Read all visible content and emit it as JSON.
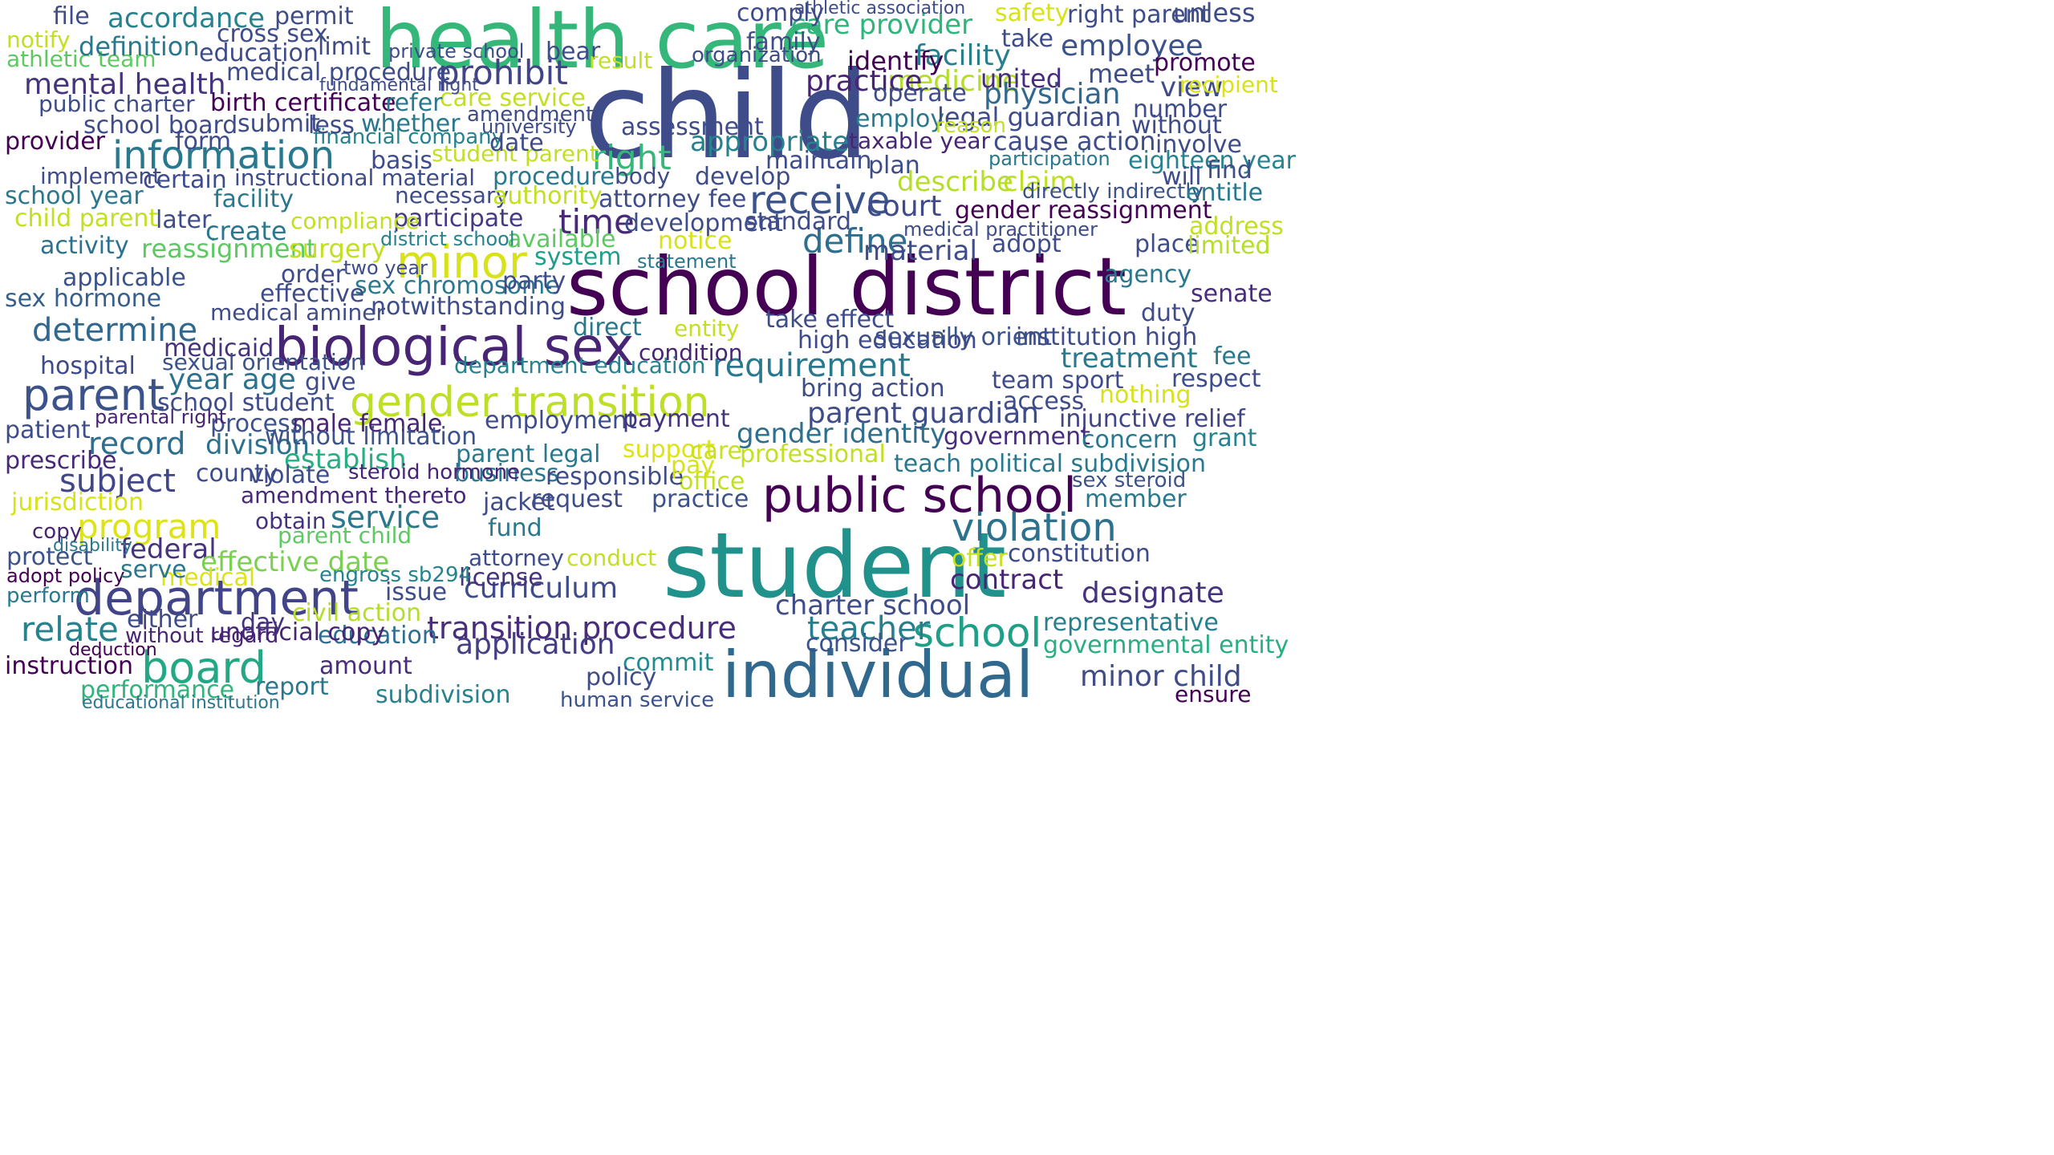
{
  "words": [
    {
      "text": "health care",
      "color": "#35b779"
    },
    {
      "text": "child",
      "color": "#3e4c8a"
    },
    {
      "text": "school district",
      "color": "#440154"
    },
    {
      "text": "biological sex",
      "color": "#482475"
    },
    {
      "text": "student",
      "color": "#21918c"
    },
    {
      "text": "public school",
      "color": "#440154"
    },
    {
      "text": "individual",
      "color": "#31688e"
    },
    {
      "text": "gender transition",
      "color": "#bddf26"
    },
    {
      "text": "department",
      "color": "#414487"
    },
    {
      "text": "minor",
      "color": "#d8e219"
    },
    {
      "text": "parent",
      "color": "#3b528b"
    },
    {
      "text": "board",
      "color": "#22a884"
    },
    {
      "text": "information",
      "color": "#2a788e"
    },
    {
      "text": "violation",
      "color": "#2c728e"
    },
    {
      "text": "school",
      "color": "#1f9e89"
    },
    {
      "text": "receive",
      "color": "#3b528b"
    },
    {
      "text": "determine",
      "color": "#31688e"
    },
    {
      "text": "mental health",
      "color": "#46337e"
    },
    {
      "text": "requirement",
      "color": "#2a788e"
    },
    {
      "text": "transition procedure",
      "color": "#472d7b"
    },
    {
      "text": "charter school",
      "color": "#3e4c8a"
    },
    {
      "text": "program",
      "color": "#dde318"
    },
    {
      "text": "relate",
      "color": "#26828e"
    },
    {
      "text": "time",
      "color": "#482878"
    },
    {
      "text": "prohibit",
      "color": "#414487"
    },
    {
      "text": "define",
      "color": "#2e6e8e"
    },
    {
      "text": "right",
      "color": "#35b779"
    },
    {
      "text": "employee",
      "color": "#3b528b"
    },
    {
      "text": "facility",
      "color": "#277f8e"
    },
    {
      "text": "identify",
      "color": "#440154"
    },
    {
      "text": "medicine",
      "color": "#b5de2b"
    },
    {
      "text": "practice",
      "color": "#482475"
    },
    {
      "text": "physician",
      "color": "#31688e"
    },
    {
      "text": "birth certificate",
      "color": "#440154"
    },
    {
      "text": "care provider",
      "color": "#2fb47c"
    },
    {
      "text": "teacher",
      "color": "#277f8e"
    },
    {
      "text": "court",
      "color": "#3e4a89"
    },
    {
      "text": "contract",
      "color": "#482475"
    },
    {
      "text": "application",
      "color": "#433e85"
    },
    {
      "text": "curriculum",
      "color": "#3e4c8a"
    },
    {
      "text": "record",
      "color": "#2e6e8e"
    },
    {
      "text": "federal",
      "color": "#46337e"
    },
    {
      "text": "service",
      "color": "#2a788e"
    },
    {
      "text": "subject",
      "color": "#404688"
    },
    {
      "text": "effective date",
      "color": "#7ad151"
    },
    {
      "text": "instruction",
      "color": "#440154"
    },
    {
      "text": "performance",
      "color": "#2fb47c"
    },
    {
      "text": "business",
      "color": "#2a788e"
    },
    {
      "text": "gender reassignment",
      "color": "#440154"
    },
    {
      "text": "sex chromosome",
      "color": "#2a788e"
    },
    {
      "text": "notwithstanding",
      "color": "#3e4c8a"
    },
    {
      "text": "participate",
      "color": "#443983"
    },
    {
      "text": "available",
      "color": "#5ec962"
    },
    {
      "text": "system",
      "color": "#1f9e89"
    },
    {
      "text": "hospital",
      "color": "#3e4a89"
    },
    {
      "text": "medicaid",
      "color": "#46337e"
    },
    {
      "text": "sex hormone",
      "color": "#355f8d"
    },
    {
      "text": "activity",
      "color": "#2c728e"
    },
    {
      "text": "applicable",
      "color": "#3b528b"
    },
    {
      "text": "jurisdiction",
      "color": "#d8e219"
    },
    {
      "text": "county",
      "color": "#3e4c8a"
    },
    {
      "text": "division",
      "color": "#2c728e"
    },
    {
      "text": "prescribe",
      "color": "#482878"
    },
    {
      "text": "establish",
      "color": "#28ae80"
    },
    {
      "text": "school board",
      "color": "#3e4c8a"
    },
    {
      "text": "professional",
      "color": "#c2df23"
    },
    {
      "text": "sexually orient",
      "color": "#3b528b"
    },
    {
      "text": "team sport",
      "color": "#3e4c8a"
    },
    {
      "text": "treatment",
      "color": "#2a788e"
    },
    {
      "text": "injunctive relief",
      "color": "#414487"
    },
    {
      "text": "government",
      "color": "#472d7b"
    },
    {
      "text": "teach political subdivision",
      "color": "#2a788e"
    },
    {
      "text": "sex steroid",
      "color": "#3b528b"
    },
    {
      "text": "member",
      "color": "#2a788e"
    },
    {
      "text": "governmental entity",
      "color": "#28ae80"
    },
    {
      "text": "minor child",
      "color": "#3e4c8a"
    },
    {
      "text": "ensure",
      "color": "#440154"
    },
    {
      "text": "designate",
      "color": "#46337e"
    },
    {
      "text": "representative",
      "color": "#277f8e"
    },
    {
      "text": "constitution",
      "color": "#3e4a89"
    },
    {
      "text": "offer",
      "color": "#c8e020"
    },
    {
      "text": "consider",
      "color": "#3b528b"
    },
    {
      "text": "commit",
      "color": "#238a8d"
    },
    {
      "text": "policy",
      "color": "#3e4c8a"
    },
    {
      "text": "subdivision",
      "color": "#26828e"
    },
    {
      "text": "human service",
      "color": "#3b528b"
    },
    {
      "text": "report",
      "color": "#2a788e"
    },
    {
      "text": "amount",
      "color": "#472d7b"
    },
    {
      "text": "education",
      "color": "#2e6e8e"
    },
    {
      "text": "unofficial copy",
      "color": "#482475"
    },
    {
      "text": "civil action",
      "color": "#b5de2b"
    },
    {
      "text": "license",
      "color": "#46337e"
    },
    {
      "text": "issue",
      "color": "#3e4c8a"
    },
    {
      "text": "attorney",
      "color": "#3e4c8a"
    },
    {
      "text": "conduct",
      "color": "#c2df23"
    },
    {
      "text": "fund",
      "color": "#2a788e"
    },
    {
      "text": "request",
      "color": "#3e4c8a"
    },
    {
      "text": "practice",
      "color": "#3b528b"
    },
    {
      "text": "office",
      "color": "#c2df23"
    },
    {
      "text": "amendment thereto",
      "color": "#482878"
    },
    {
      "text": "violate",
      "color": "#3e4c8a"
    },
    {
      "text": "obtain",
      "color": "#46337e"
    },
    {
      "text": "parent child",
      "color": "#5ec962"
    },
    {
      "text": "engross sb294",
      "color": "#26828e"
    },
    {
      "text": "medical",
      "color": "#dde318"
    },
    {
      "text": "protect",
      "color": "#3b528b"
    },
    {
      "text": "adopt policy",
      "color": "#440154"
    },
    {
      "text": "serve",
      "color": "#2a788e"
    },
    {
      "text": "copy",
      "color": "#482475"
    },
    {
      "text": "disability",
      "color": "#2a788e"
    },
    {
      "text": "perform",
      "color": "#2a788e"
    },
    {
      "text": "either",
      "color": "#3e4c8a"
    },
    {
      "text": "without regard",
      "color": "#482475"
    },
    {
      "text": "deduction",
      "color": "#440154"
    },
    {
      "text": "educational institution",
      "color": "#2a788e"
    },
    {
      "text": "day",
      "color": "#46337e"
    },
    {
      "text": "year age",
      "color": "#2c728e"
    },
    {
      "text": "school student",
      "color": "#3e4c8a"
    },
    {
      "text": "process",
      "color": "#3b528b"
    },
    {
      "text": "male female",
      "color": "#482475"
    },
    {
      "text": "employment",
      "color": "#3e4c8a"
    },
    {
      "text": "payment",
      "color": "#46337e"
    },
    {
      "text": "parent guardian",
      "color": "#3e4c8a"
    },
    {
      "text": "gender identity",
      "color": "#2e6e8e"
    },
    {
      "text": "bring action",
      "color": "#3e4c8a"
    },
    {
      "text": "high education",
      "color": "#3e4c8a"
    },
    {
      "text": "take effect",
      "color": "#3e4c8a"
    },
    {
      "text": "institution high",
      "color": "#3e4c8a"
    },
    {
      "text": "condition",
      "color": "#482475"
    },
    {
      "text": "direct",
      "color": "#2a788e"
    },
    {
      "text": "entity",
      "color": "#c2df23"
    },
    {
      "text": "department education",
      "color": "#26828e"
    },
    {
      "text": "give",
      "color": "#3e4c8a"
    },
    {
      "text": "sexual orientation",
      "color": "#3b528b"
    },
    {
      "text": "parental right",
      "color": "#482475"
    },
    {
      "text": "patient",
      "color": "#3e4c8a"
    },
    {
      "text": "without limitation",
      "color": "#3b528b"
    },
    {
      "text": "steroid hormone",
      "color": "#482475"
    },
    {
      "text": "parent legal",
      "color": "#2a788e"
    },
    {
      "text": "responsible",
      "color": "#3e4c8a"
    },
    {
      "text": "support",
      "color": "#dde318"
    },
    {
      "text": "pay",
      "color": "#d8e219"
    },
    {
      "text": "care",
      "color": "#c8e020"
    },
    {
      "text": "jacket",
      "color": "#3e4c8a"
    },
    {
      "text": "concern",
      "color": "#2a788e"
    },
    {
      "text": "grant",
      "color": "#26828e"
    },
    {
      "text": "access",
      "color": "#3e4c8a"
    },
    {
      "text": "nothing",
      "color": "#d8e219"
    },
    {
      "text": "respect",
      "color": "#3e4c8a"
    },
    {
      "text": "fee",
      "color": "#2a788e"
    },
    {
      "text": "duty",
      "color": "#3e4c8a"
    },
    {
      "text": "senate",
      "color": "#472d7b"
    },
    {
      "text": "agency",
      "color": "#2a788e"
    },
    {
      "text": "place",
      "color": "#3e4c8a"
    },
    {
      "text": "limited",
      "color": "#b5de2b"
    },
    {
      "text": "address",
      "color": "#c2df23"
    },
    {
      "text": "adopt",
      "color": "#3e4c8a"
    },
    {
      "text": "material",
      "color": "#3e4c8a"
    },
    {
      "text": "medical practitioner",
      "color": "#3e4c8a"
    },
    {
      "text": "standard",
      "color": "#3e4c8a"
    },
    {
      "text": "describe",
      "color": "#b5de2b"
    },
    {
      "text": "claim",
      "color": "#bddf26"
    },
    {
      "text": "directly indirectly",
      "color": "#3b528b"
    },
    {
      "text": "entitle",
      "color": "#2a788e"
    },
    {
      "text": "plan",
      "color": "#3e4c8a"
    },
    {
      "text": "maintain",
      "color": "#3e4c8a"
    },
    {
      "text": "develop",
      "color": "#3e4c8a"
    },
    {
      "text": "taxable year",
      "color": "#482475"
    },
    {
      "text": "cause action",
      "color": "#3e4c8a"
    },
    {
      "text": "participation",
      "color": "#2a788e"
    },
    {
      "text": "involve",
      "color": "#3e4c8a"
    },
    {
      "text": "eighteen year",
      "color": "#26828e"
    },
    {
      "text": "will",
      "color": "#3e4c8a"
    },
    {
      "text": "find",
      "color": "#3e4c8a"
    },
    {
      "text": "appropriate",
      "color": "#26828e"
    },
    {
      "text": "assessment",
      "color": "#3e4c8a"
    },
    {
      "text": "united",
      "color": "#472d7b"
    },
    {
      "text": "meet",
      "color": "#3e4c8a"
    },
    {
      "text": "view",
      "color": "#3e4c8a"
    },
    {
      "text": "promote",
      "color": "#440154"
    },
    {
      "text": "recipient",
      "color": "#d8e219"
    },
    {
      "text": "number",
      "color": "#3e4c8a"
    },
    {
      "text": "operate",
      "color": "#3e4c8a"
    },
    {
      "text": "employ",
      "color": "#2a788e"
    },
    {
      "text": "legal guardian",
      "color": "#3e4c8a"
    },
    {
      "text": "reason",
      "color": "#c2df23"
    },
    {
      "text": "without",
      "color": "#3e4c8a"
    },
    {
      "text": "take",
      "color": "#3e4c8a"
    },
    {
      "text": "comply",
      "color": "#3e4c8a"
    },
    {
      "text": "athletic association",
      "color": "#3e4c8a"
    },
    {
      "text": "safety",
      "color": "#d8e219"
    },
    {
      "text": "right parent",
      "color": "#3e4c8a"
    },
    {
      "text": "unless",
      "color": "#3e4c8a"
    },
    {
      "text": "family",
      "color": "#3e4c8a"
    },
    {
      "text": "organization",
      "color": "#3e4c8a"
    },
    {
      "text": "bear",
      "color": "#3e4c8a"
    },
    {
      "text": "result",
      "color": "#c2df23"
    },
    {
      "text": "care service",
      "color": "#c2df23"
    },
    {
      "text": "amendment",
      "color": "#3e4c8a"
    },
    {
      "text": "whether",
      "color": "#2a788e"
    },
    {
      "text": "university",
      "color": "#3e4c8a"
    },
    {
      "text": "financial company",
      "color": "#26828e"
    },
    {
      "text": "basis",
      "color": "#3e4c8a"
    },
    {
      "text": "student parent",
      "color": "#c2df23"
    },
    {
      "text": "date",
      "color": "#3e4c8a"
    },
    {
      "text": "instructional material",
      "color": "#3e4c8a"
    },
    {
      "text": "procedure",
      "color": "#2a788e"
    },
    {
      "text": "body",
      "color": "#3e4c8a"
    },
    {
      "text": "necessary",
      "color": "#3e4c8a"
    },
    {
      "text": "authority",
      "color": "#c2df23"
    },
    {
      "text": "attorney fee",
      "color": "#3e4c8a"
    },
    {
      "text": "development",
      "color": "#3e4c8a"
    },
    {
      "text": "notice",
      "color": "#d8e219"
    },
    {
      "text": "statement",
      "color": "#2a788e"
    },
    {
      "text": "party",
      "color": "#3e4c8a"
    },
    {
      "text": "medical aminer",
      "color": "#3e4c8a"
    },
    {
      "text": "effective",
      "color": "#3e4c8a"
    },
    {
      "text": "order",
      "color": "#3e4c8a"
    },
    {
      "text": "two year",
      "color": "#3e4c8a"
    },
    {
      "text": "reassignment",
      "color": "#5ec962"
    },
    {
      "text": "surgery",
      "color": "#c2df23"
    },
    {
      "text": "compliance",
      "color": "#c2df23"
    },
    {
      "text": "create",
      "color": "#2a788e"
    },
    {
      "text": "district school",
      "color": "#26828e"
    },
    {
      "text": "later",
      "color": "#3e4c8a"
    },
    {
      "text": "certain",
      "color": "#3e4c8a"
    },
    {
      "text": "facility",
      "color": "#2a788e"
    },
    {
      "text": "implement",
      "color": "#3e4c8a"
    },
    {
      "text": "school year",
      "color": "#2a788e"
    },
    {
      "text": "child parent",
      "color": "#c2df23"
    },
    {
      "text": "public charter",
      "color": "#3e4c8a"
    },
    {
      "text": "provider",
      "color": "#440154"
    },
    {
      "text": "submit",
      "color": "#3e4c8a"
    },
    {
      "text": "less",
      "color": "#3e4c8a"
    },
    {
      "text": "form",
      "color": "#3e4c8a"
    },
    {
      "text": "refer",
      "color": "#2a788e"
    },
    {
      "text": "notify",
      "color": "#c2df23"
    },
    {
      "text": "athletic team",
      "color": "#5ec962"
    },
    {
      "text": "definition",
      "color": "#2a788e"
    },
    {
      "text": "file",
      "color": "#3e4c8a"
    },
    {
      "text": "accordance",
      "color": "#26828e"
    },
    {
      "text": "permit",
      "color": "#3e4c8a"
    },
    {
      "text": "cross sex",
      "color": "#3e4c8a"
    },
    {
      "text": "limit",
      "color": "#3e4c8a"
    },
    {
      "text": "education",
      "color": "#3e4c8a"
    },
    {
      "text": "medical procedure",
      "color": "#3e4c8a"
    },
    {
      "text": "fundamental right",
      "color": "#3e4c8a"
    },
    {
      "text": "private school",
      "color": "#3e4c8a"
    }
  ]
}
